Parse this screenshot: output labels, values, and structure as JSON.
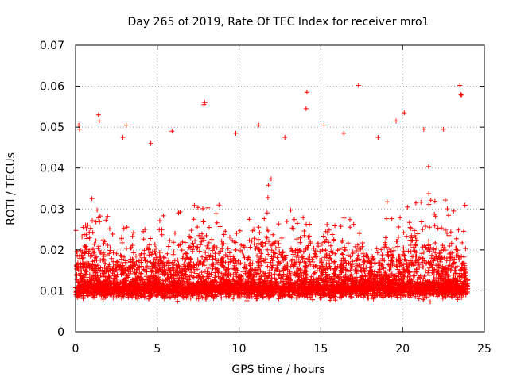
{
  "chart_data": {
    "type": "scatter",
    "title": "Day 265 of 2019, Rate Of TEC Index for receiver mro1",
    "xlabel": "GPS time / hours",
    "ylabel": "ROTI / TECUs",
    "xlim": [
      0,
      25
    ],
    "ylim": [
      0,
      0.07
    ],
    "xticks": [
      0,
      5,
      10,
      15,
      20,
      25
    ],
    "yticks": [
      0,
      0.01,
      0.02,
      0.03,
      0.04,
      0.05,
      0.06,
      0.07
    ],
    "xtick_labels": [
      "0",
      "5",
      "10",
      "15",
      "20",
      "25"
    ],
    "ytick_labels": [
      "0",
      "0.01",
      "0.02",
      "0.03",
      "0.04",
      "0.05",
      "0.06",
      "0.07"
    ],
    "grid": true,
    "marker": "+",
    "color": "#ff0000",
    "series": [
      {
        "name": "mro1",
        "description_points": [
          [
            0.2,
            0.0505
          ],
          [
            0.25,
            0.0495
          ],
          [
            1.4,
            0.053
          ],
          [
            1.45,
            0.0515
          ],
          [
            3.1,
            0.0505
          ],
          [
            7.9,
            0.056
          ],
          [
            7.85,
            0.0555
          ],
          [
            11.2,
            0.0505
          ],
          [
            14.15,
            0.0585
          ],
          [
            14.1,
            0.0545
          ],
          [
            15.2,
            0.0505
          ],
          [
            17.3,
            0.0602
          ],
          [
            19.6,
            0.0515
          ],
          [
            20.1,
            0.0535
          ],
          [
            21.3,
            0.0495
          ],
          [
            22.5,
            0.0495
          ],
          [
            23.5,
            0.0602
          ],
          [
            23.55,
            0.058
          ],
          [
            23.6,
            0.0578
          ],
          [
            9.8,
            0.0485
          ],
          [
            5.9,
            0.049
          ],
          [
            4.6,
            0.046
          ],
          [
            2.9,
            0.0475
          ],
          [
            12.8,
            0.0475
          ],
          [
            16.4,
            0.0485
          ],
          [
            18.5,
            0.0475
          ]
        ]
      }
    ]
  }
}
